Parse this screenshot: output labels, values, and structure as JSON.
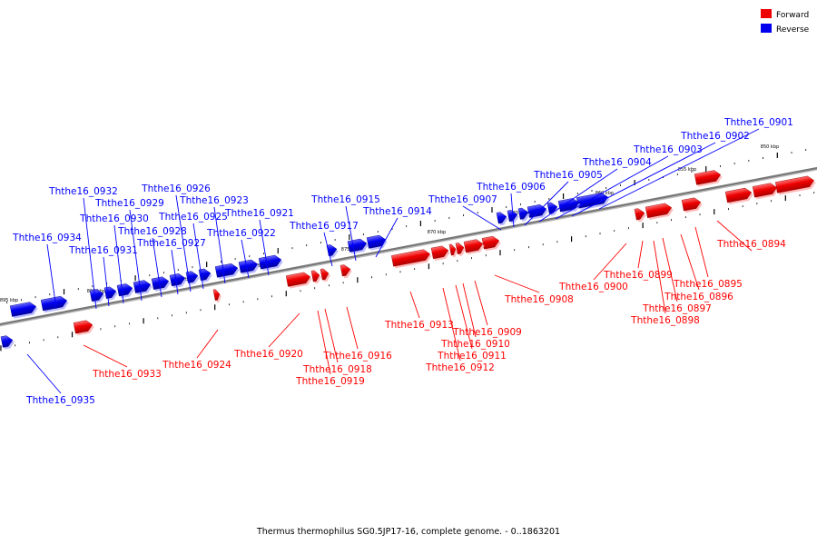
{
  "legend": {
    "forward_label": "Forward",
    "reverse_label": "Reverse"
  },
  "colors": {
    "forward": "#ff0000",
    "reverse": "#0000ff",
    "axis": "#777777"
  },
  "caption": "Thermus thermophilus SG0.5JP17-16, complete genome. - 0..1863201",
  "ruler_labels": [
    "850 kbp",
    "855 kbp",
    "860 kbp",
    "865 kbp",
    "870 kbp",
    "875 kbp",
    "880 kbp",
    "885 kbp",
    "890 kbp",
    "895 kbp"
  ],
  "genes": [
    {
      "id": "Ththe16_0894",
      "strand": "forward"
    },
    {
      "id": "Ththe16_0895",
      "strand": "forward"
    },
    {
      "id": "Ththe16_0896",
      "strand": "forward"
    },
    {
      "id": "Ththe16_0897",
      "strand": "forward"
    },
    {
      "id": "Ththe16_0898",
      "strand": "forward"
    },
    {
      "id": "Ththe16_0899",
      "strand": "forward"
    },
    {
      "id": "Ththe16_0900",
      "strand": "forward"
    },
    {
      "id": "Ththe16_0901",
      "strand": "reverse"
    },
    {
      "id": "Ththe16_0902",
      "strand": "reverse"
    },
    {
      "id": "Ththe16_0903",
      "strand": "reverse"
    },
    {
      "id": "Ththe16_0904",
      "strand": "reverse"
    },
    {
      "id": "Ththe16_0905",
      "strand": "reverse"
    },
    {
      "id": "Ththe16_0906",
      "strand": "reverse"
    },
    {
      "id": "Ththe16_0907",
      "strand": "reverse"
    },
    {
      "id": "Ththe16_0908",
      "strand": "forward"
    },
    {
      "id": "Ththe16_0909",
      "strand": "forward"
    },
    {
      "id": "Ththe16_0910",
      "strand": "forward"
    },
    {
      "id": "Ththe16_0911",
      "strand": "forward"
    },
    {
      "id": "Ththe16_0912",
      "strand": "forward"
    },
    {
      "id": "Ththe16_0913",
      "strand": "forward"
    },
    {
      "id": "Ththe16_0914",
      "strand": "reverse"
    },
    {
      "id": "Ththe16_0915",
      "strand": "reverse"
    },
    {
      "id": "Ththe16_0916",
      "strand": "forward"
    },
    {
      "id": "Ththe16_0917",
      "strand": "reverse"
    },
    {
      "id": "Ththe16_0918",
      "strand": "forward"
    },
    {
      "id": "Ththe16_0919",
      "strand": "forward"
    },
    {
      "id": "Ththe16_0920",
      "strand": "forward"
    },
    {
      "id": "Ththe16_0921",
      "strand": "reverse"
    },
    {
      "id": "Ththe16_0922",
      "strand": "reverse"
    },
    {
      "id": "Ththe16_0923",
      "strand": "reverse"
    },
    {
      "id": "Ththe16_0924",
      "strand": "forward"
    },
    {
      "id": "Ththe16_0925",
      "strand": "reverse"
    },
    {
      "id": "Ththe16_0926",
      "strand": "reverse"
    },
    {
      "id": "Ththe16_0927",
      "strand": "reverse"
    },
    {
      "id": "Ththe16_0928",
      "strand": "reverse"
    },
    {
      "id": "Ththe16_0929",
      "strand": "reverse"
    },
    {
      "id": "Ththe16_0930",
      "strand": "reverse"
    },
    {
      "id": "Ththe16_0931",
      "strand": "reverse"
    },
    {
      "id": "Ththe16_0932",
      "strand": "reverse"
    },
    {
      "id": "Ththe16_0933",
      "strand": "forward"
    },
    {
      "id": "Ththe16_0934",
      "strand": "reverse"
    },
    {
      "id": "Ththe16_0935",
      "strand": "reverse"
    }
  ]
}
